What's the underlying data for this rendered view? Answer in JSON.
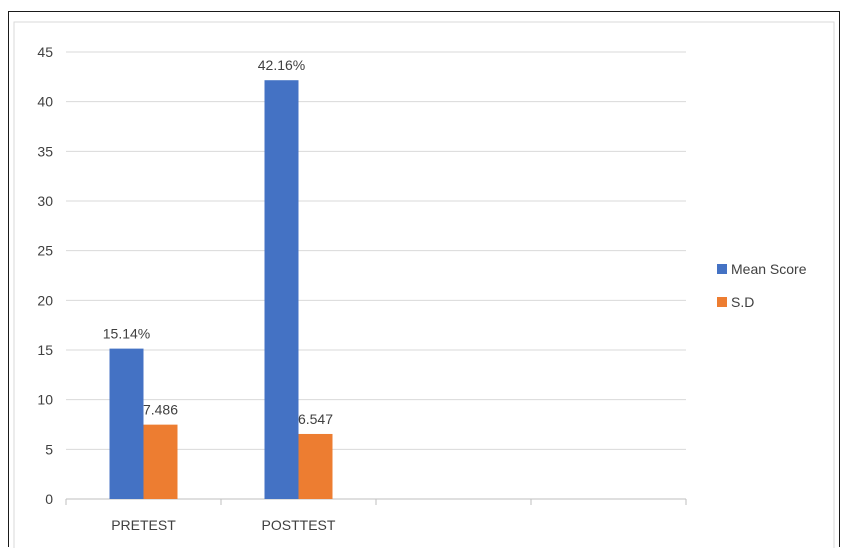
{
  "chart_data": {
    "type": "bar",
    "categories": [
      "PRETEST",
      "POSTTEST",
      "",
      ""
    ],
    "series": [
      {
        "name": "Mean Score",
        "values": [
          15.14,
          42.16,
          null,
          null
        ],
        "labels": [
          "15.14%",
          "42.16%",
          "",
          ""
        ],
        "color": "#4472c4"
      },
      {
        "name": "S.D",
        "values": [
          7.486,
          6.547,
          null,
          null
        ],
        "labels": [
          "7.486",
          "6.547",
          "",
          ""
        ],
        "color": "#ed7d31"
      }
    ],
    "ylim": [
      0,
      45
    ],
    "yticks": [
      "0",
      "5",
      "10",
      "15",
      "20",
      "25",
      "30",
      "35",
      "40",
      "45"
    ],
    "grid": true,
    "legend_position": "right"
  },
  "colors": {
    "gridline": "#d9d9d9",
    "axis": "#bfbfbf",
    "text": "#404040"
  }
}
